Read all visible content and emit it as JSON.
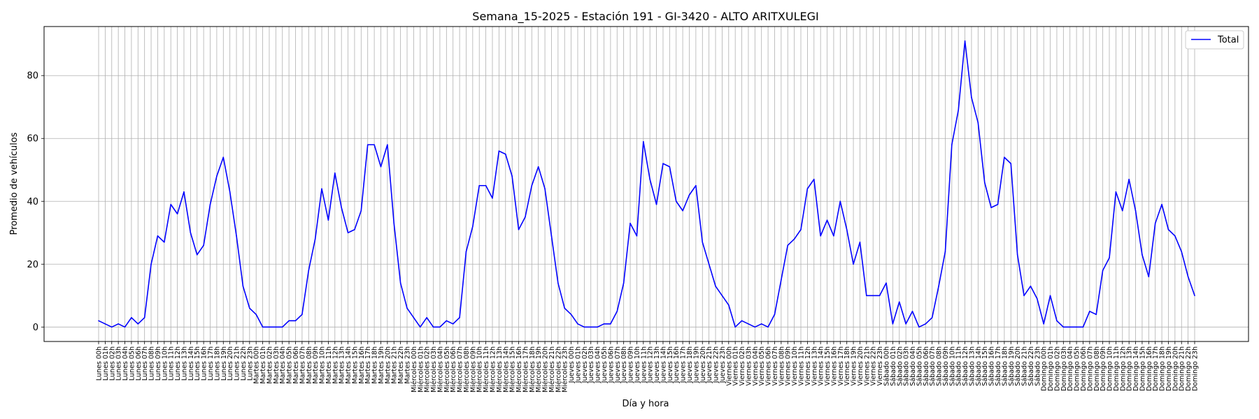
{
  "chart_data": {
    "type": "line",
    "title": "Semana_15-2025 - Estación 191 - GI-3420  - ALTO ARITXULEGI",
    "xlabel": "Día y hora",
    "ylabel": "Promedio de vehículos",
    "ylim": [
      -4.6,
      95.6
    ],
    "yticks": [
      0,
      20,
      40,
      60,
      80
    ],
    "grid": true,
    "legend_position": "top-right",
    "days": [
      "Lunes",
      "Martes",
      "Miércoles",
      "Jueves",
      "Viernes",
      "Sábado",
      "Domingo"
    ],
    "series": [
      {
        "name": "Total",
        "color": "#0000ff",
        "values": [
          2,
          1,
          0,
          1,
          0,
          3,
          1,
          3,
          20,
          29,
          27,
          39,
          36,
          43,
          30,
          23,
          26,
          39,
          48,
          54,
          43,
          29,
          13,
          6,
          4,
          0,
          0,
          0,
          0,
          2,
          2,
          4,
          18,
          28,
          44,
          34,
          49,
          38,
          30,
          31,
          37,
          58,
          58,
          51,
          58,
          33,
          14,
          6,
          3,
          0,
          3,
          0,
          0,
          2,
          1,
          3,
          24,
          32,
          45,
          45,
          41,
          56,
          55,
          48,
          31,
          35,
          45,
          51,
          44,
          29,
          14,
          6,
          4,
          1,
          0,
          0,
          0,
          1,
          1,
          5,
          14,
          33,
          29,
          59,
          47,
          39,
          52,
          51,
          40,
          37,
          42,
          45,
          27,
          20,
          13,
          10,
          7,
          0,
          2,
          1,
          0,
          1,
          0,
          4,
          15,
          26,
          28,
          31,
          44,
          47,
          29,
          34,
          29,
          40,
          31,
          20,
          27,
          10,
          10,
          10,
          14,
          1,
          8,
          1,
          5,
          0,
          1,
          3,
          13,
          24,
          58,
          69,
          91,
          73,
          65,
          46,
          38,
          39,
          54,
          52,
          23,
          10,
          13,
          9,
          1,
          10,
          2,
          0,
          0,
          0,
          0,
          5,
          4,
          18,
          22,
          43,
          37,
          47,
          37,
          23,
          16,
          33,
          39,
          31,
          29,
          24,
          16,
          10
        ]
      }
    ]
  }
}
